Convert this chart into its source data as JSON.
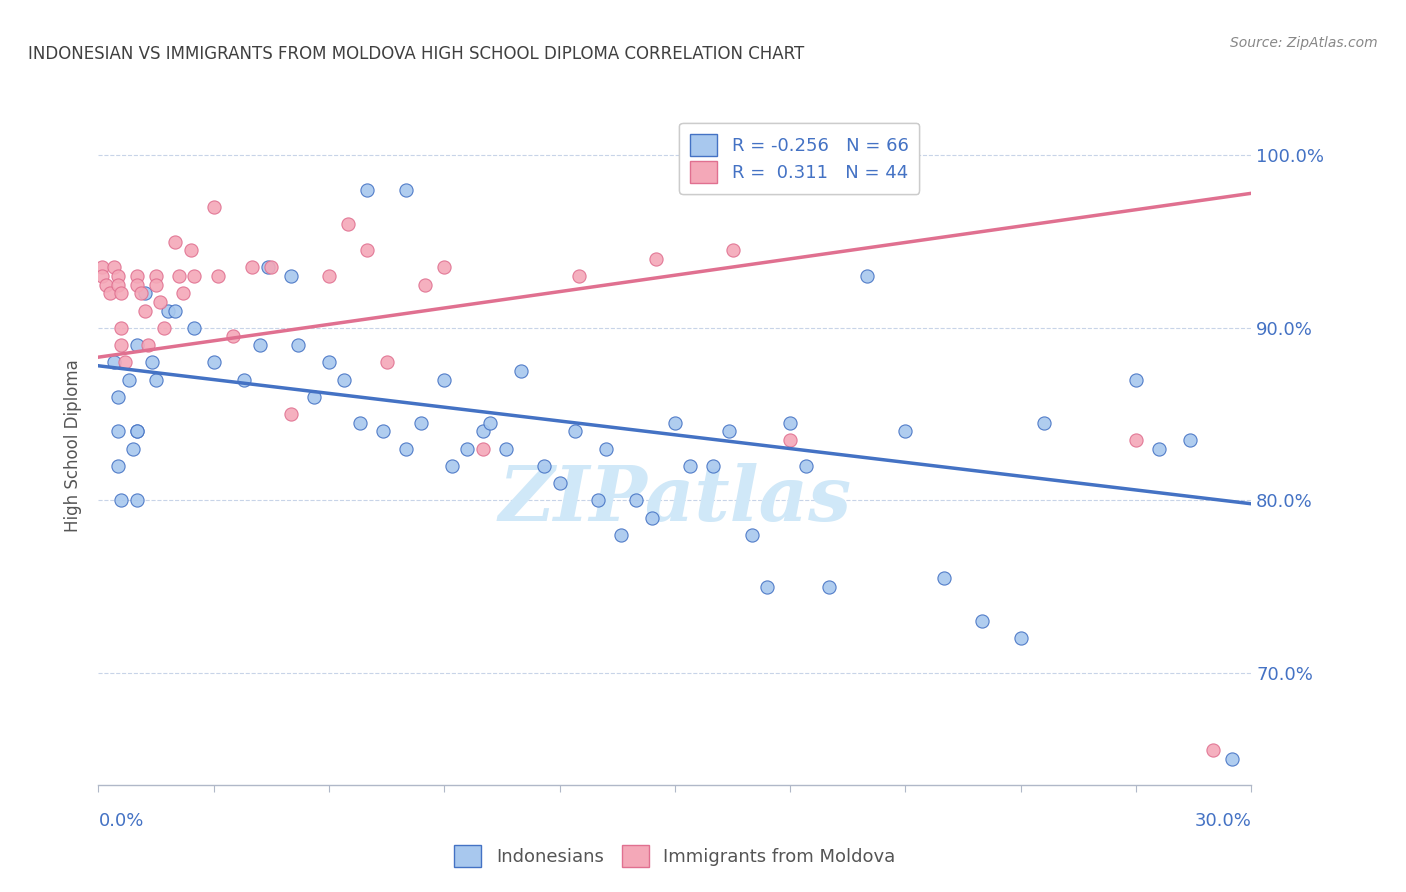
{
  "title": "INDONESIAN VS IMMIGRANTS FROM MOLDOVA HIGH SCHOOL DIPLOMA CORRELATION CHART",
  "source": "Source: ZipAtlas.com",
  "ylabel": "High School Diploma",
  "ytick_labels": [
    "70.0%",
    "80.0%",
    "90.0%",
    "100.0%"
  ],
  "ytick_values": [
    0.7,
    0.8,
    0.9,
    1.0
  ],
  "xmin": 0.0,
  "xmax": 0.3,
  "ymin": 0.635,
  "ymax": 1.028,
  "legend_r_blue": "R = -0.256",
  "legend_n_blue": "N = 66",
  "legend_r_pink": "R =  0.311",
  "legend_n_pink": "N = 44",
  "legend_label_blue": "Indonesians",
  "legend_label_pink": "Immigrants from Moldova",
  "color_blue": "#a8c8ee",
  "color_pink": "#f4a8b8",
  "color_blue_line": "#4472c4",
  "color_pink_line": "#e07090",
  "color_title": "#404040",
  "color_source": "#888888",
  "color_axis_labels": "#4472c4",
  "watermark": "ZIPatlas",
  "watermark_color": "#d0e8f8",
  "blue_dots_x": [
    0.008,
    0.01,
    0.012,
    0.015,
    0.018,
    0.01,
    0.01,
    0.004,
    0.005,
    0.005,
    0.005,
    0.006,
    0.009,
    0.01,
    0.014,
    0.02,
    0.025,
    0.03,
    0.038,
    0.042,
    0.044,
    0.05,
    0.052,
    0.056,
    0.06,
    0.064,
    0.068,
    0.074,
    0.08,
    0.084,
    0.09,
    0.092,
    0.096,
    0.1,
    0.102,
    0.106,
    0.11,
    0.116,
    0.12,
    0.124,
    0.13,
    0.132,
    0.136,
    0.14,
    0.144,
    0.15,
    0.154,
    0.16,
    0.164,
    0.17,
    0.174,
    0.18,
    0.184,
    0.19,
    0.2,
    0.21,
    0.22,
    0.23,
    0.24,
    0.246,
    0.27,
    0.276,
    0.284,
    0.295,
    0.07,
    0.08
  ],
  "blue_dots_y": [
    0.87,
    0.84,
    0.92,
    0.87,
    0.91,
    0.89,
    0.84,
    0.88,
    0.86,
    0.84,
    0.82,
    0.8,
    0.83,
    0.8,
    0.88,
    0.91,
    0.9,
    0.88,
    0.87,
    0.89,
    0.935,
    0.93,
    0.89,
    0.86,
    0.88,
    0.87,
    0.845,
    0.84,
    0.83,
    0.845,
    0.87,
    0.82,
    0.83,
    0.84,
    0.845,
    0.83,
    0.875,
    0.82,
    0.81,
    0.84,
    0.8,
    0.83,
    0.78,
    0.8,
    0.79,
    0.845,
    0.82,
    0.82,
    0.84,
    0.78,
    0.75,
    0.845,
    0.82,
    0.75,
    0.93,
    0.84,
    0.755,
    0.73,
    0.72,
    0.845,
    0.87,
    0.83,
    0.835,
    0.65,
    0.98,
    0.98
  ],
  "pink_dots_x": [
    0.001,
    0.001,
    0.002,
    0.003,
    0.004,
    0.005,
    0.005,
    0.006,
    0.006,
    0.006,
    0.007,
    0.01,
    0.01,
    0.011,
    0.012,
    0.013,
    0.015,
    0.015,
    0.016,
    0.017,
    0.02,
    0.021,
    0.022,
    0.024,
    0.025,
    0.03,
    0.031,
    0.035,
    0.04,
    0.045,
    0.05,
    0.06,
    0.065,
    0.07,
    0.075,
    0.085,
    0.09,
    0.1,
    0.125,
    0.145,
    0.165,
    0.18,
    0.27,
    0.29
  ],
  "pink_dots_y": [
    0.935,
    0.93,
    0.925,
    0.92,
    0.935,
    0.93,
    0.925,
    0.92,
    0.9,
    0.89,
    0.88,
    0.93,
    0.925,
    0.92,
    0.91,
    0.89,
    0.93,
    0.925,
    0.915,
    0.9,
    0.95,
    0.93,
    0.92,
    0.945,
    0.93,
    0.97,
    0.93,
    0.895,
    0.935,
    0.935,
    0.85,
    0.93,
    0.96,
    0.945,
    0.88,
    0.925,
    0.935,
    0.83,
    0.93,
    0.94,
    0.945,
    0.835,
    0.835,
    0.655
  ],
  "blue_line_x": [
    0.0,
    0.3
  ],
  "blue_line_y": [
    0.878,
    0.798
  ],
  "pink_line_x": [
    0.0,
    0.3
  ],
  "pink_line_y": [
    0.883,
    0.978
  ]
}
